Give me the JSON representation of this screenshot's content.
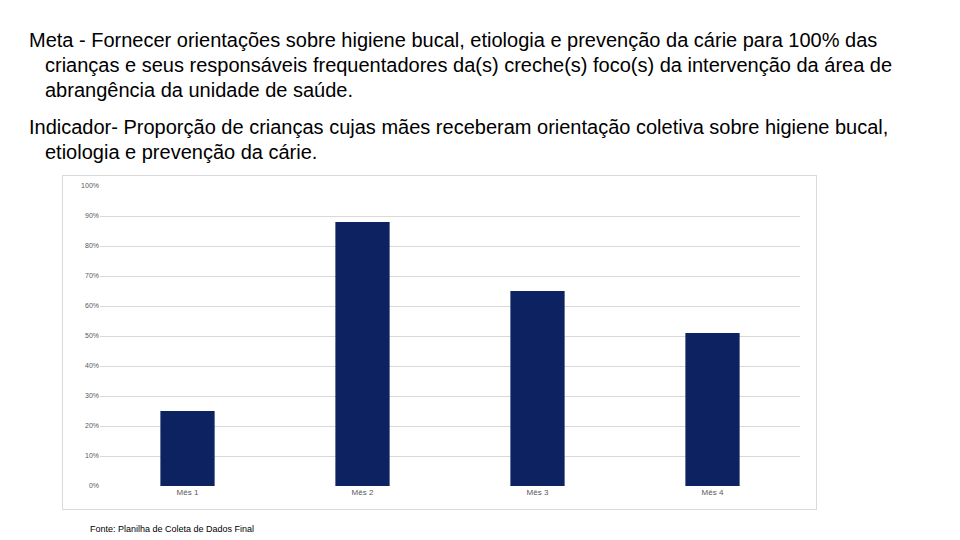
{
  "text": [
    "Meta - Fornecer orientações sobre higiene bucal, etiologia e prevenção da cárie para 100% das crianças e seus responsáveis frequentadores da(s) creche(s) foco(s) da intervenção da área de abrangência da unidade de saúde.",
    "Indicador- Proporção de crianças cujas mães receberam orientação coletiva sobre higiene bucal, etiologia e prevenção da cárie."
  ],
  "chart_data": {
    "type": "bar",
    "categories": [
      "Mês 1",
      "Mês 2",
      "Mês 3",
      "Mês 4"
    ],
    "values": [
      25,
      88,
      65,
      51
    ],
    "color": "#0d2260",
    "ylim": [
      0,
      100
    ],
    "yticks": [
      {
        "value": 0,
        "label": "0%"
      },
      {
        "value": 10,
        "label": "10%"
      },
      {
        "value": 20,
        "label": "20%"
      },
      {
        "value": 30,
        "label": "30%"
      },
      {
        "value": 40,
        "label": "40%"
      },
      {
        "value": 50,
        "label": "50%"
      },
      {
        "value": 60,
        "label": "60%"
      },
      {
        "value": 70,
        "label": "70%"
      },
      {
        "value": 80,
        "label": "80%"
      },
      {
        "value": 90,
        "label": "90%"
      },
      {
        "value": 100,
        "label": "100%"
      }
    ],
    "grid": true,
    "annotations": [
      "Fonte: Planilha de Coleta de Dados Final"
    ]
  }
}
